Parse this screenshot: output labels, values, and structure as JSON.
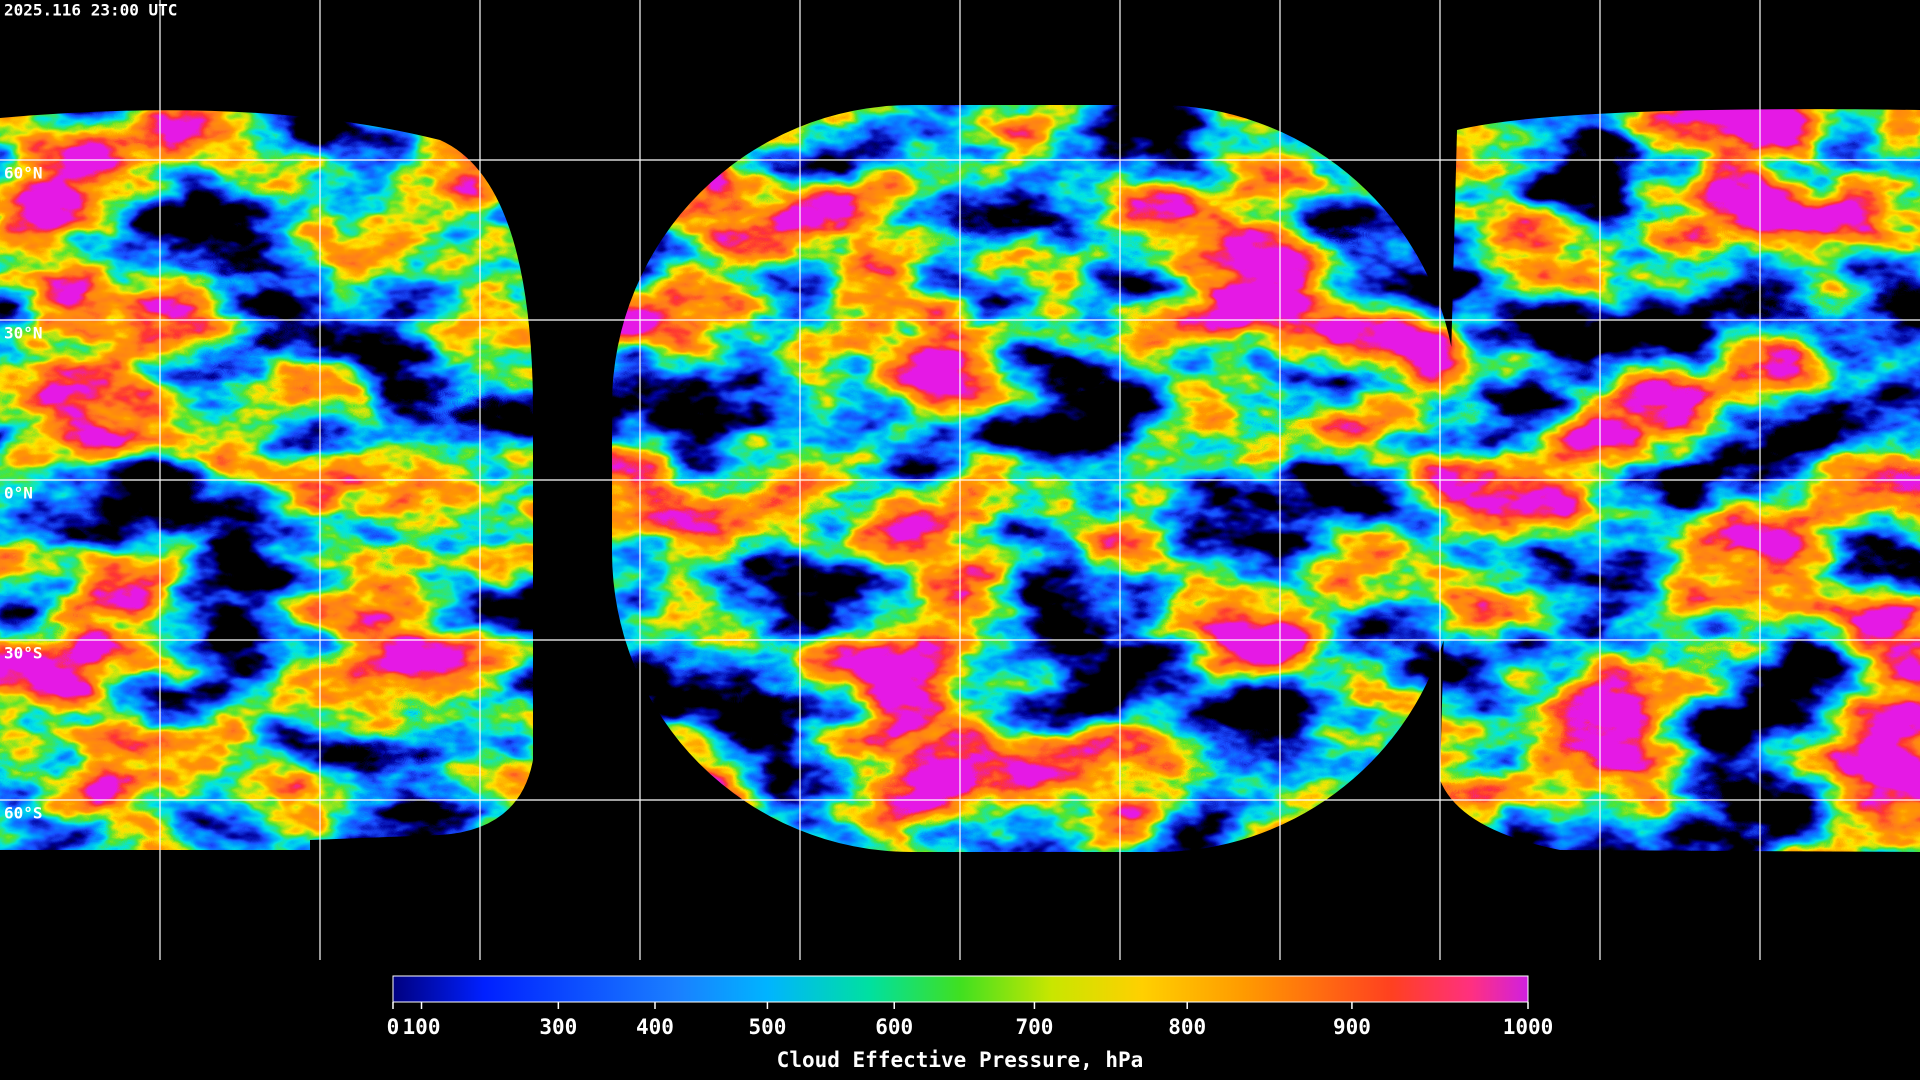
{
  "header": {
    "timestamp": "2025.116 23:00 UTC"
  },
  "map": {
    "latitude_labels": [
      {
        "value": 60,
        "label": "60°N"
      },
      {
        "value": 30,
        "label": "30°N"
      },
      {
        "value": 0,
        "label": "0°N"
      },
      {
        "value": -30,
        "label": "30°S"
      },
      {
        "value": -60,
        "label": "60°S"
      }
    ],
    "grid": true
  },
  "colorbar": {
    "title": "Cloud Effective Pressure, hPa",
    "lim": [
      0,
      1000
    ],
    "ticks": [
      0,
      100,
      300,
      400,
      500,
      600,
      700,
      800,
      900,
      1000
    ],
    "scale": "power",
    "exponent": 1.6
  }
}
